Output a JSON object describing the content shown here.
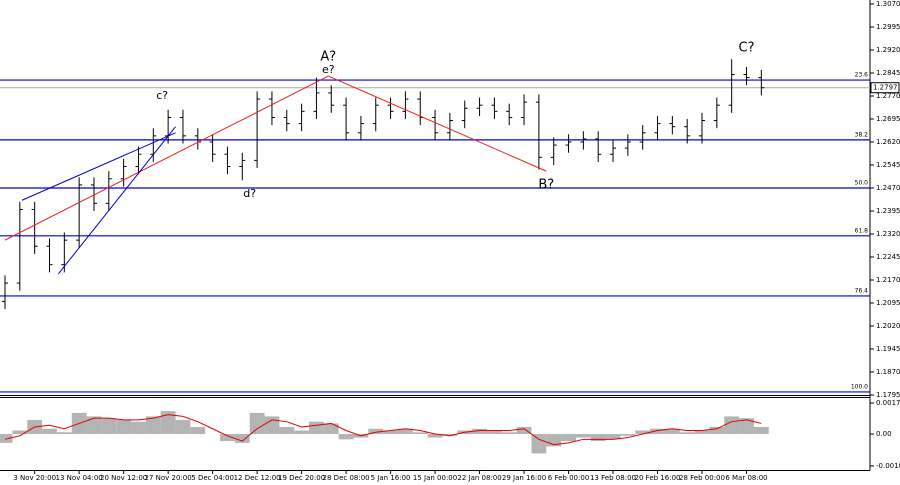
{
  "chart_data": [
    {
      "type": "ohlc",
      "categories": [
        null,
        null,
        "3 Nov 20:00",
        null,
        null,
        "13 Nov 04:00",
        null,
        null,
        "20 Nov 12:00",
        null,
        null,
        "27 Nov 20:00",
        null,
        null,
        "5 Dec 04:00",
        null,
        null,
        "12 Dec 12:00",
        null,
        null,
        "19 Dec 20:00",
        null,
        null,
        "28 Dec 08:00",
        null,
        null,
        "5 Jan 16:00",
        null,
        null,
        "15 Jan 00:00",
        null,
        null,
        "22 Jan 08:00",
        null,
        null,
        "29 Jan 16:00",
        null,
        null,
        "6 Feb 00:00",
        null,
        null,
        "13 Feb 08:00",
        null,
        null,
        "20 Feb 16:00",
        null,
        null,
        "28 Feb 00:00",
        null,
        null,
        "6 Mar 08:00",
        null
      ],
      "open": [
        1.21,
        1.216,
        1.24,
        1.228,
        1.222,
        1.23,
        1.248,
        1.242,
        1.25,
        1.254,
        1.258,
        1.264,
        1.27,
        1.264,
        1.262,
        1.258,
        1.254,
        1.256,
        1.276,
        1.27,
        1.268,
        1.272,
        1.278,
        1.274,
        1.265,
        1.268,
        1.274,
        1.272,
        1.276,
        1.27,
        1.265,
        1.269,
        1.273,
        1.274,
        1.272,
        1.27,
        1.275,
        1.257,
        1.261,
        1.262,
        1.263,
        1.258,
        1.26,
        1.262,
        1.265,
        1.268,
        1.267,
        1.264,
        1.269,
        1.274,
        1.284,
        1.283
      ],
      "high": [
        1.2185,
        1.2425,
        1.2425,
        1.2305,
        1.2325,
        1.2505,
        1.2505,
        1.2525,
        1.2565,
        1.2605,
        1.2665,
        1.2725,
        1.2725,
        1.2665,
        1.2645,
        1.2605,
        1.2585,
        1.2785,
        1.2785,
        1.2725,
        1.2745,
        1.283,
        1.2805,
        1.2765,
        1.2705,
        1.2765,
        1.2765,
        1.2785,
        1.2785,
        1.2725,
        1.2715,
        1.2755,
        1.2765,
        1.2765,
        1.2745,
        1.2775,
        1.2775,
        1.2635,
        1.2645,
        1.2655,
        1.2655,
        1.2625,
        1.2645,
        1.2675,
        1.2705,
        1.2705,
        1.2695,
        1.2715,
        1.2765,
        1.289,
        1.2865,
        1.2855
      ],
      "low": [
        1.2075,
        1.2135,
        1.2255,
        1.2195,
        1.2195,
        1.2275,
        1.2395,
        1.2395,
        1.2475,
        1.2515,
        1.2555,
        1.2615,
        1.2615,
        1.2595,
        1.2555,
        1.2515,
        1.2495,
        1.2535,
        1.2675,
        1.2655,
        1.2655,
        1.2695,
        1.2715,
        1.2625,
        1.2625,
        1.2655,
        1.2695,
        1.2695,
        1.2675,
        1.2625,
        1.2625,
        1.2665,
        1.2705,
        1.2695,
        1.2675,
        1.2675,
        1.253,
        1.2545,
        1.2585,
        1.2595,
        1.2555,
        1.2555,
        1.2575,
        1.2595,
        1.2625,
        1.2645,
        1.2615,
        1.2615,
        1.2665,
        1.2715,
        1.2805,
        1.2772
      ],
      "close": [
        1.216,
        1.24,
        1.228,
        1.222,
        1.23,
        1.248,
        1.242,
        1.25,
        1.254,
        1.258,
        1.264,
        1.27,
        1.264,
        1.262,
        1.258,
        1.254,
        1.256,
        1.276,
        1.27,
        1.268,
        1.272,
        1.278,
        1.274,
        1.265,
        1.268,
        1.274,
        1.272,
        1.276,
        1.27,
        1.265,
        1.269,
        1.273,
        1.274,
        1.272,
        1.27,
        1.275,
        1.257,
        1.261,
        1.262,
        1.263,
        1.258,
        1.26,
        1.262,
        1.265,
        1.268,
        1.267,
        1.264,
        1.269,
        1.274,
        1.284,
        1.283,
        1.2797
      ],
      "color": "#000000",
      "ylim": [
        1.1795,
        1.3083
      ],
      "yticks": [
        {
          "value": 1.307,
          "label": "1.3070"
        },
        1.2995,
        {
          "value": 1.292,
          "label": "1.2920"
        },
        1.2845,
        {
          "value": 1.277,
          "label": "1.2770"
        },
        1.2695,
        {
          "value": 1.262,
          "label": "1.2620"
        },
        1.2545,
        {
          "value": 1.247,
          "label": "1.2470"
        },
        1.2395,
        {
          "value": 1.232,
          "label": "1.2320"
        },
        1.2245,
        {
          "value": 1.217,
          "label": "1.2170"
        },
        1.2095,
        {
          "value": 1.202,
          "label": "1.2020"
        },
        1.1945,
        {
          "value": 1.187,
          "label": "1.1870"
        },
        1.1795
      ],
      "current_price": 1.2797,
      "fib_color": "#0000cd",
      "fib_levels": [
        {
          "label": "23.6",
          "value": 1.2822
        },
        {
          "label": "38.2",
          "value": 1.2627
        },
        {
          "label": "50.0",
          "value": 1.247
        },
        {
          "label": "61.8",
          "value": 1.2314
        },
        {
          "label": "76.4",
          "value": 1.2118
        },
        {
          "label": "100.0",
          "value": 1.1805
        }
      ],
      "annotation_color": "#e8231f",
      "annotations": [
        {
          "text": "A?",
          "x": 21.8,
          "y": 1.2897
        },
        {
          "text": "e?",
          "x": 21.8,
          "y": 1.2855
        },
        {
          "text": "c?",
          "x": 10.6,
          "y": 1.277
        },
        {
          "text": "d?",
          "x": 16.5,
          "y": 1.245
        },
        {
          "text": "B?",
          "x": 36.5,
          "y": 1.248
        },
        {
          "text": "C?",
          "x": 50,
          "y": 1.2927
        }
      ],
      "wave_lines": [
        {
          "color": "#e8231f",
          "x": [
            0,
            21.8,
            36.5
          ],
          "y": [
            1.23,
            1.2835,
            1.2525
          ]
        },
        {
          "color": "#0000cd",
          "x": [
            1.15,
            11.5
          ],
          "y": [
            1.243,
            1.265
          ]
        },
        {
          "color": "#0000cd",
          "x": [
            3.6,
            11.5
          ],
          "y": [
            1.219,
            1.267
          ]
        }
      ]
    },
    {
      "type": "histogram",
      "values": [
        -0.0005,
        0.0002,
        0.0008,
        0.0003,
        0.0001,
        0.0012,
        0.001,
        0.0009,
        0.0008,
        0.0007,
        0.001,
        0.0013,
        0.0008,
        0.0004,
        0.0,
        -0.0004,
        -0.0005,
        0.0012,
        0.001,
        0.0004,
        0.0002,
        0.0007,
        0.0006,
        -0.0003,
        -0.0002,
        0.0003,
        0.0002,
        0.0003,
        0.0001,
        -0.0002,
        -0.0001,
        0.0002,
        0.0003,
        0.0002,
        0.0001,
        0.0004,
        -0.0011,
        -0.0007,
        -0.0004,
        -0.0002,
        -0.0004,
        -0.0003,
        -0.0001,
        0.0002,
        0.0003,
        0.0003,
        0.0001,
        0.0002,
        0.0004,
        0.001,
        0.0009,
        0.0004
      ],
      "color": "#b4b4b4",
      "signal": {
        "color": "#e00000",
        "values": [
          -0.0003,
          -0.0001,
          0.0004,
          0.0005,
          0.0003,
          0.0006,
          0.0009,
          0.0009,
          0.0008,
          0.0008,
          0.0009,
          0.0011,
          0.001,
          0.0007,
          0.0003,
          -0.0001,
          -0.0004,
          0.0003,
          0.0008,
          0.0007,
          0.0004,
          0.0005,
          0.0006,
          0.0002,
          -0.0001,
          0.0001,
          0.0002,
          0.0003,
          0.0002,
          0.0,
          -0.0001,
          0.0001,
          0.0002,
          0.0002,
          0.0002,
          0.0003,
          -0.0003,
          -0.0006,
          -0.0005,
          -0.0003,
          -0.0003,
          -0.0003,
          -0.0002,
          0.0,
          0.0002,
          0.0003,
          0.0002,
          0.0002,
          0.0003,
          0.0007,
          0.0008,
          0.0006
        ]
      },
      "ylim": [
        -0.00204,
        0.0021
      ],
      "yticks": [
        0.00176,
        {
          "value": 0,
          "label": "0.00"
        },
        -0.00181
      ]
    }
  ]
}
